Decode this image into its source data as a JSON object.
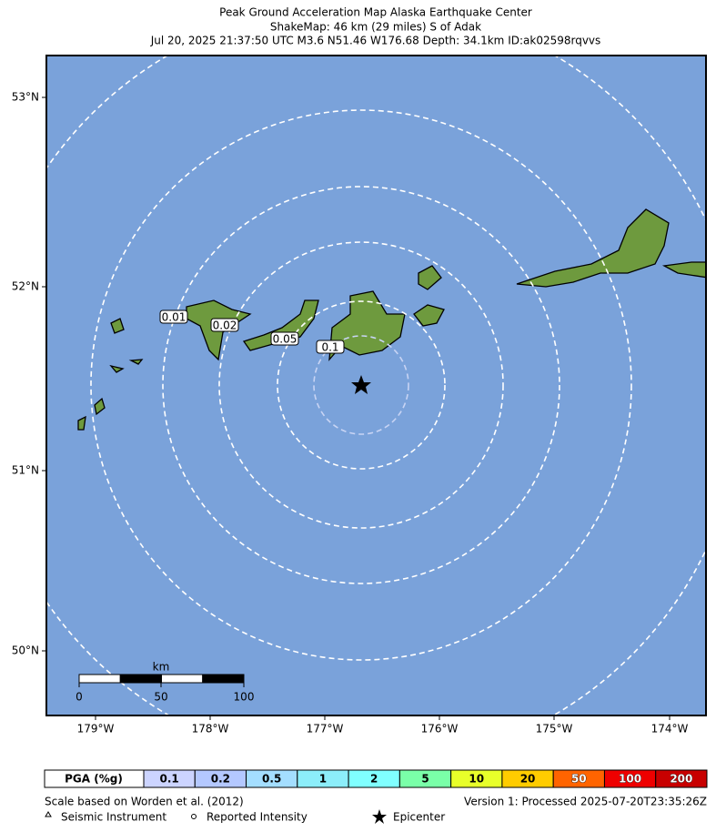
{
  "header": {
    "lines": [
      "Peak Ground Acceleration Map Alaska Earthquake Center",
      "ShakeMap: 46 km (29 miles) S of Adak",
      "Jul 20, 2025 21:37:50 UTC M3.6 N51.46 W176.68 Depth: 34.1km ID:ak02598rqvvs"
    ]
  },
  "map": {
    "lat_labels": [
      "53°N",
      "52°N",
      "51°N",
      "50°N"
    ],
    "lon_labels": [
      "179°W",
      "178°W",
      "177°W",
      "176°W",
      "175°W",
      "174°W"
    ],
    "contour_labels": [
      "0.01",
      "0.02",
      "0.05",
      "0.1"
    ],
    "scale_bar": {
      "unit": "km",
      "labels": [
        "0",
        "50",
        "100"
      ]
    }
  },
  "legend": {
    "title": "PGA (%g)",
    "items": [
      {
        "label": "0.1",
        "color": "#ccd4ff"
      },
      {
        "label": "0.2",
        "color": "#b4c8ff"
      },
      {
        "label": "0.5",
        "color": "#a4deff"
      },
      {
        "label": "1",
        "color": "#8ceefa"
      },
      {
        "label": "2",
        "color": "#80ffff"
      },
      {
        "label": "5",
        "color": "#7affa8"
      },
      {
        "label": "10",
        "color": "#e8ff2a"
      },
      {
        "label": "20",
        "color": "#ffcc00"
      },
      {
        "label": "50",
        "color": "#ff6400"
      },
      {
        "label": "100",
        "color": "#ee0000"
      },
      {
        "label": "200",
        "color": "#c80000"
      }
    ]
  },
  "footer": {
    "left": "Scale based on Worden et al. (2012)",
    "right": "Version 1: Processed 2025-07-20T23:35:26Z",
    "instrument": "Seismic Instrument",
    "intensity": "Reported Intensity",
    "epicenter": "Epicenter"
  }
}
